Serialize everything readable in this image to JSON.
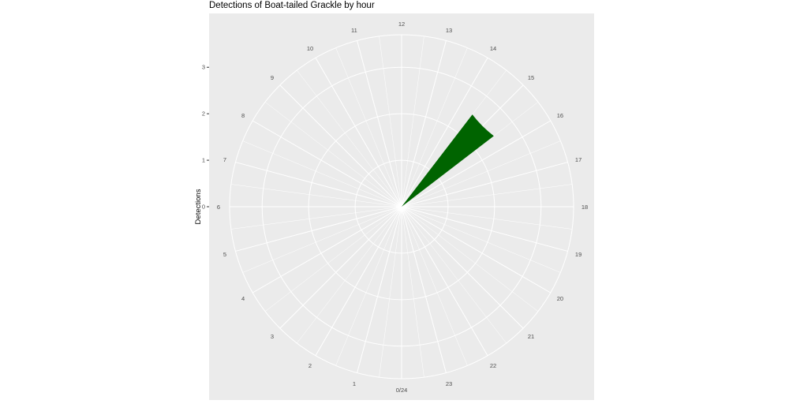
{
  "chart_data": {
    "type": "bar",
    "coord": "polar",
    "title": "Detections of Boat-tailed Grackle by hour",
    "xlabel": "",
    "ylabel": "Detections",
    "categories": [
      "0/24",
      "1",
      "2",
      "3",
      "4",
      "5",
      "6",
      "7",
      "8",
      "9",
      "10",
      "11",
      "12",
      "13",
      "14",
      "15",
      "16",
      "17",
      "18",
      "19",
      "20",
      "21",
      "22",
      "23"
    ],
    "values": [
      0,
      0,
      0,
      0,
      0,
      0,
      0,
      0,
      0,
      0,
      0,
      0,
      0,
      0,
      0,
      2.5,
      0,
      0,
      0,
      0,
      0,
      0,
      0,
      0
    ],
    "yticks": [
      0,
      1,
      2,
      3
    ],
    "ylim": [
      0,
      3.7
    ],
    "grid": true,
    "bar_color": "#006400",
    "panel_color": "#ebebeb",
    "grid_color": "#ffffff"
  }
}
